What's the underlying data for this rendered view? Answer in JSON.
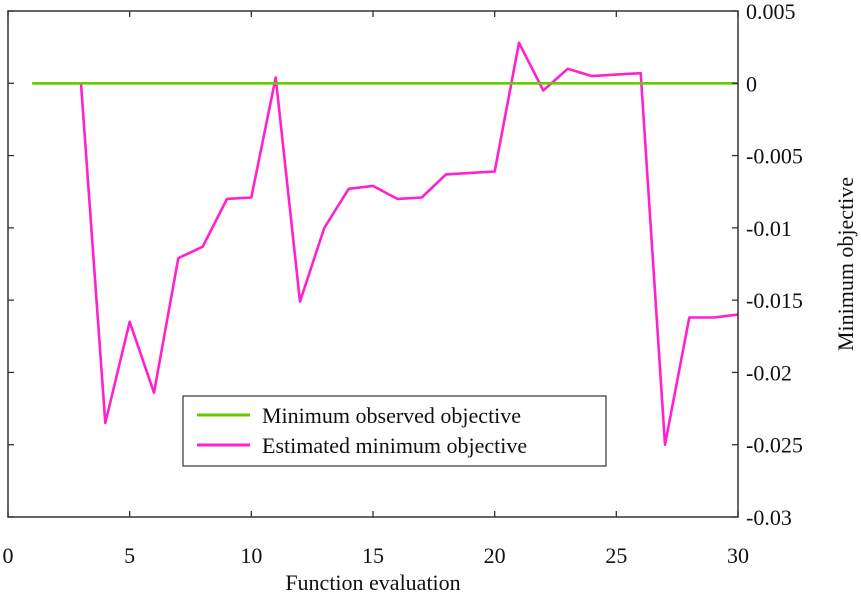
{
  "chart_data": {
    "type": "line",
    "title": "",
    "xlabel": "Function evaluation",
    "ylabel": "Minimum objective",
    "xlim": [
      0,
      30
    ],
    "ylim": [
      -0.03,
      0.005
    ],
    "x_ticks": [
      "0",
      "5",
      "10",
      "15",
      "20",
      "25",
      "30"
    ],
    "y_ticks": [
      "0.005",
      "0",
      "-0.005",
      "-0.01",
      "-0.015",
      "-0.02",
      "-0.025",
      "-0.03"
    ],
    "y_axis_side": "right",
    "grid": false,
    "legend_placement": "bottom-center",
    "x": [
      1,
      2,
      3,
      4,
      5,
      6,
      7,
      8,
      9,
      10,
      11,
      12,
      13,
      14,
      15,
      16,
      17,
      18,
      19,
      20,
      21,
      22,
      23,
      24,
      25,
      26,
      27,
      28,
      29,
      30
    ],
    "series": [
      {
        "name": "Minimum observed objective",
        "color": "#66cc00",
        "values": [
          0,
          0,
          0,
          0,
          0,
          0,
          0,
          0,
          0,
          0,
          0,
          0,
          0,
          0,
          0,
          0,
          0,
          0,
          0,
          0,
          0,
          0,
          0,
          0,
          0,
          0,
          0,
          0,
          0,
          0
        ]
      },
      {
        "name": "Estimated minimum objective",
        "color": "#ff22cc",
        "values": [
          0,
          0,
          0,
          -0.0235,
          -0.0165,
          -0.0214,
          -0.0121,
          -0.0113,
          -0.008,
          -0.0079,
          0.0004,
          -0.0151,
          -0.01,
          -0.0073,
          -0.0071,
          -0.008,
          -0.0079,
          -0.0063,
          -0.0062,
          -0.0061,
          0.0028,
          -0.0005,
          0.001,
          0.0005,
          0.0006,
          0.0007,
          -0.025,
          -0.0162,
          -0.0162,
          -0.016
        ]
      }
    ]
  }
}
